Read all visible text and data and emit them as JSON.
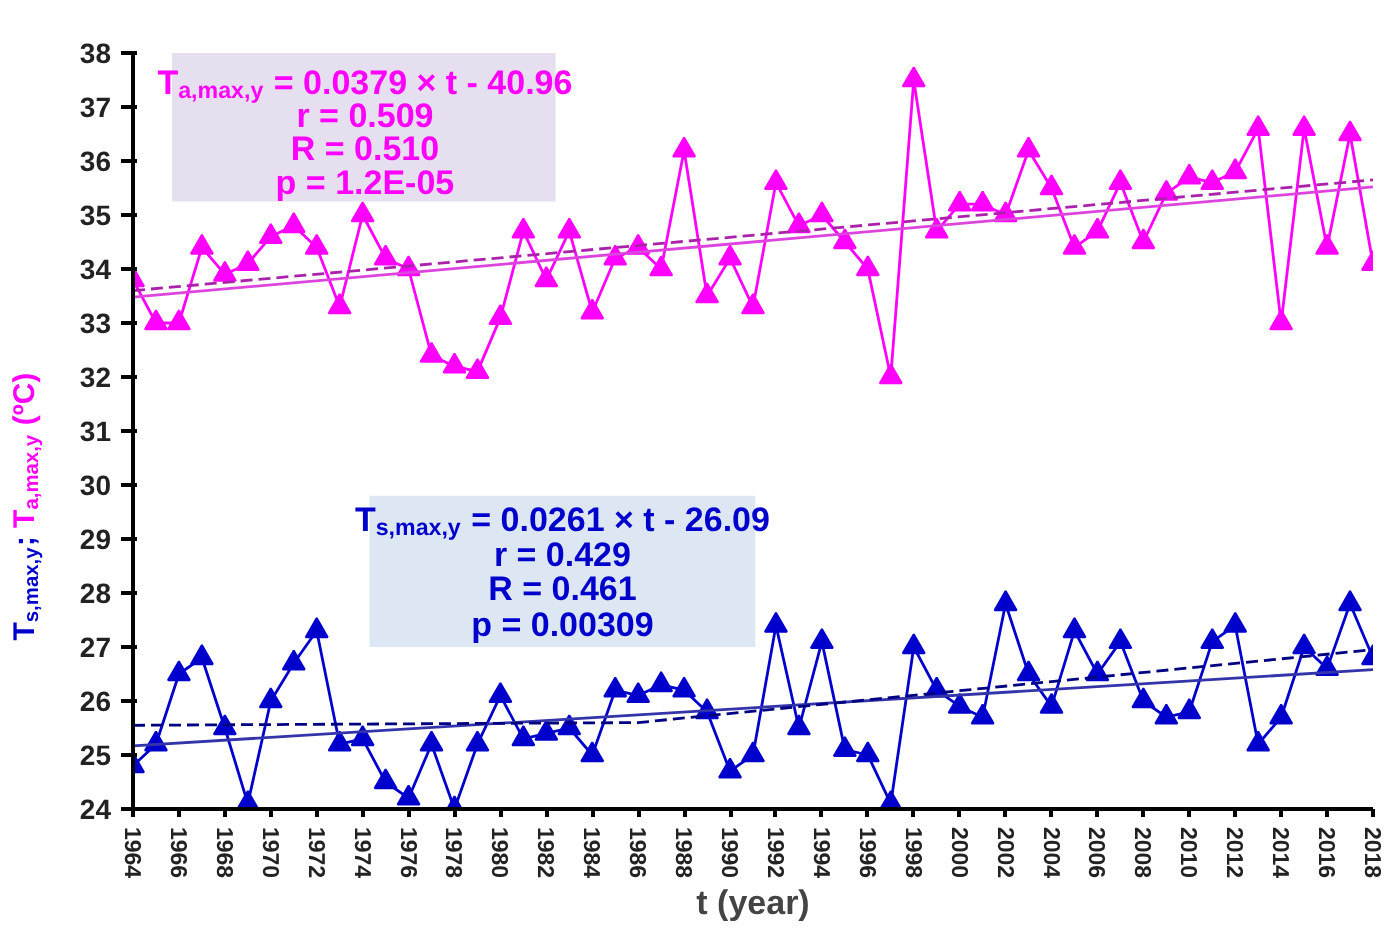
{
  "chart_data": {
    "type": "line",
    "xlabel": "t (year)",
    "ylabel": "T$_{s,max,y}$; T$_{a,max,y}$ (ºC)",
    "xlim": [
      1964,
      2018
    ],
    "xticks": [
      1964,
      1966,
      1968,
      1970,
      1972,
      1974,
      1976,
      1978,
      1980,
      1982,
      1984,
      1986,
      1988,
      1990,
      1992,
      1994,
      1996,
      1998,
      2000,
      2002,
      2004,
      2006,
      2008,
      2010,
      2012,
      2014,
      2016,
      2018
    ],
    "ylim": [
      24,
      38
    ],
    "yticks": [
      24,
      25,
      26,
      27,
      28,
      29,
      30,
      31,
      32,
      33,
      34,
      35,
      36,
      37,
      38
    ],
    "grid": false,
    "x": [
      1964,
      1965,
      1966,
      1967,
      1968,
      1969,
      1970,
      1971,
      1972,
      1973,
      1974,
      1975,
      1976,
      1977,
      1978,
      1979,
      1980,
      1981,
      1982,
      1983,
      1984,
      1985,
      1986,
      1987,
      1988,
      1989,
      1990,
      1991,
      1992,
      1993,
      1994,
      1995,
      1996,
      1997,
      1998,
      1999,
      2000,
      2001,
      2002,
      2003,
      2004,
      2005,
      2006,
      2007,
      2008,
      2009,
      2010,
      2011,
      2012,
      2013,
      2014,
      2015,
      2016,
      2017,
      2018
    ],
    "series": [
      {
        "color": "#ff00ff",
        "marker": "triangle",
        "line_style": "solid",
        "values": [
          33.8,
          33.0,
          33.0,
          34.4,
          33.9,
          34.1,
          34.6,
          34.8,
          34.4,
          33.3,
          35.0,
          34.2,
          34.0,
          32.4,
          32.2,
          32.1,
          33.1,
          34.7,
          33.8,
          34.7,
          33.2,
          34.2,
          34.4,
          34.0,
          36.2,
          33.5,
          34.2,
          33.3,
          35.6,
          34.8,
          35.0,
          34.5,
          34.0,
          32.0,
          37.5,
          34.7,
          35.2,
          35.2,
          35.0,
          36.2,
          35.5,
          34.4,
          34.7,
          35.6,
          34.5,
          35.4,
          35.7,
          35.6,
          35.8,
          36.6,
          33.0,
          36.6,
          34.4,
          36.5,
          34.1
        ]
      },
      {
        "color": "#0000cc",
        "marker": "triangle",
        "line_style": "solid",
        "values": [
          24.8,
          25.2,
          26.5,
          26.8,
          25.5,
          24.1,
          26.0,
          26.7,
          27.3,
          25.2,
          25.3,
          24.5,
          24.2,
          25.2,
          24.0,
          25.2,
          26.1,
          25.3,
          25.4,
          25.5,
          25.0,
          26.2,
          26.1,
          26.3,
          26.2,
          25.8,
          24.7,
          25.0,
          27.4,
          25.5,
          27.1,
          25.1,
          25.0,
          24.1,
          27.0,
          26.2,
          25.9,
          25.7,
          27.8,
          26.5,
          25.9,
          27.3,
          26.5,
          27.1,
          26.0,
          25.7,
          25.8,
          27.1,
          27.4,
          25.2,
          25.7,
          27.0,
          26.6,
          27.8,
          26.8
        ]
      },
      {
        "color": "#dd44dd",
        "marker": "none",
        "line_style": "solid",
        "x": [
          1964,
          2018
        ],
        "values": [
          33.48,
          35.52
        ]
      },
      {
        "color": "#aa22aa",
        "marker": "none",
        "line_style": "dashed",
        "x": [
          1964,
          2018
        ],
        "values": [
          33.6,
          35.65
        ]
      },
      {
        "color": "#3333aa",
        "marker": "none",
        "line_style": "solid",
        "x": [
          1964,
          2018
        ],
        "values": [
          25.17,
          26.58
        ]
      },
      {
        "color": "#000080",
        "marker": "none",
        "line_style": "dashed",
        "x": [
          1964,
          1986,
          2018
        ],
        "values": [
          25.55,
          25.6,
          26.95
        ]
      }
    ],
    "annotations": [
      "T$_{a,max,y}$ = 0.0379 × t - 40.96",
      "r = 0.509",
      "R = 0.510",
      "p = 1.2E-05",
      "T$_{s,max,y}$ = 0.0261 × t - 26.09",
      "r = 0.429",
      "R = 0.461",
      "p = 0.00309"
    ]
  }
}
